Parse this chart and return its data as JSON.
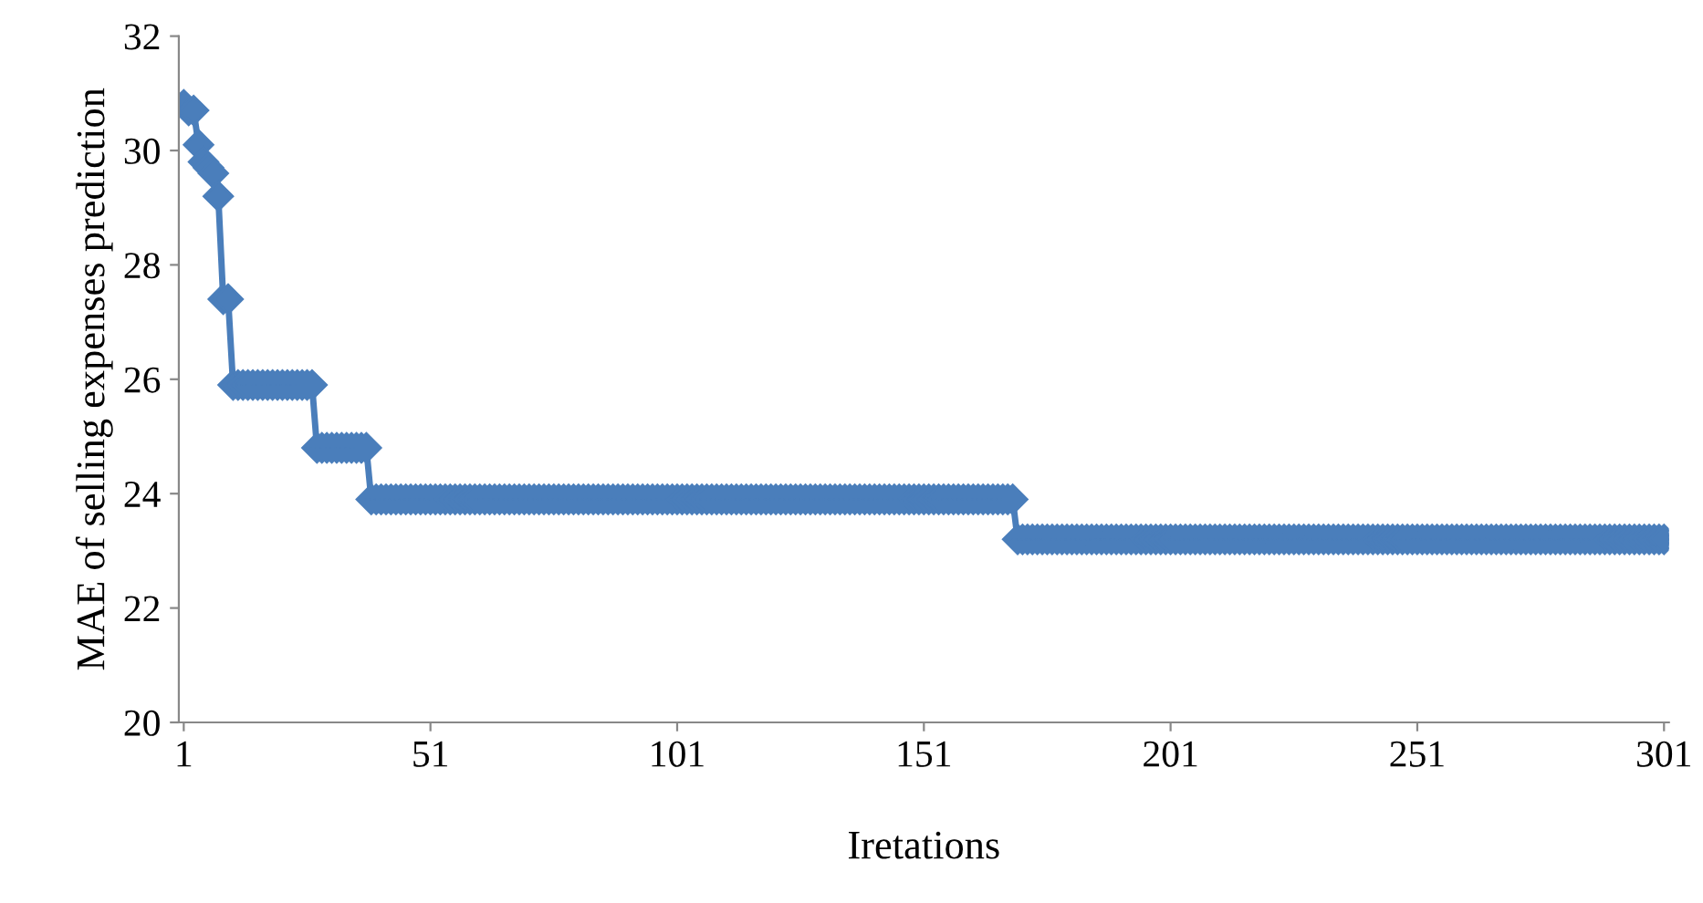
{
  "chart_data": {
    "type": "line",
    "xlabel": "Iretations",
    "ylabel": "MAE of selling expenses prediction",
    "x": [
      1,
      2,
      3,
      4,
      5,
      6,
      7,
      8,
      9,
      10,
      11,
      12,
      13,
      14,
      15,
      16,
      17,
      18,
      19,
      20,
      21,
      22,
      23,
      24,
      25,
      26,
      27,
      28,
      29,
      30,
      31,
      32,
      33,
      34,
      35,
      36,
      37,
      38,
      39,
      40,
      41,
      42,
      43,
      44,
      45,
      46,
      47,
      48,
      49,
      50,
      51,
      52,
      53,
      54,
      55,
      56,
      57,
      58,
      59,
      60,
      61,
      62,
      63,
      64,
      65,
      66,
      67,
      68,
      69,
      70,
      71,
      72,
      73,
      74,
      75,
      76,
      77,
      78,
      79,
      80,
      81,
      82,
      83,
      84,
      85,
      86,
      87,
      88,
      89,
      90,
      91,
      92,
      93,
      94,
      95,
      96,
      97,
      98,
      99,
      100,
      101,
      102,
      103,
      104,
      105,
      106,
      107,
      108,
      109,
      110,
      111,
      112,
      113,
      114,
      115,
      116,
      117,
      118,
      119,
      120,
      121,
      122,
      123,
      124,
      125,
      126,
      127,
      128,
      129,
      130,
      131,
      132,
      133,
      134,
      135,
      136,
      137,
      138,
      139,
      140,
      141,
      142,
      143,
      144,
      145,
      146,
      147,
      148,
      149,
      150,
      151,
      152,
      153,
      154,
      155,
      156,
      157,
      158,
      159,
      160,
      161,
      162,
      163,
      164,
      165,
      166,
      167,
      168,
      169,
      170,
      171,
      172,
      173,
      174,
      175,
      176,
      177,
      178,
      179,
      180,
      181,
      182,
      183,
      184,
      185,
      186,
      187,
      188,
      189,
      190,
      191,
      192,
      193,
      194,
      195,
      196,
      197,
      198,
      199,
      200,
      201,
      202,
      203,
      204,
      205,
      206,
      207,
      208,
      209,
      210,
      211,
      212,
      213,
      214,
      215,
      216,
      217,
      218,
      219,
      220,
      221,
      222,
      223,
      224,
      225,
      226,
      227,
      228,
      229,
      230,
      231,
      232,
      233,
      234,
      235,
      236,
      237,
      238,
      239,
      240,
      241,
      242,
      243,
      244,
      245,
      246,
      247,
      248,
      249,
      250,
      251,
      252,
      253,
      254,
      255,
      256,
      257,
      258,
      259,
      260,
      261,
      262,
      263,
      264,
      265,
      266,
      267,
      268,
      269,
      270,
      271,
      272,
      273,
      274,
      275,
      276,
      277,
      278,
      279,
      280,
      281,
      282,
      283,
      284,
      285,
      286,
      287,
      288,
      289,
      290,
      291,
      292,
      293,
      294,
      295,
      296,
      297,
      298,
      299,
      300,
      301
    ],
    "series": [
      {
        "color": "#4a7ebb",
        "values": [
          30.8,
          30.7,
          30.7,
          30.1,
          29.8,
          29.7,
          29.6,
          29.2,
          27.4,
          27.4,
          25.9,
          25.9,
          25.9,
          25.9,
          25.9,
          25.9,
          25.9,
          25.9,
          25.9,
          25.9,
          25.9,
          25.9,
          25.9,
          25.9,
          25.9,
          25.9,
          25.9,
          24.8,
          24.8,
          24.8,
          24.8,
          24.8,
          24.8,
          24.8,
          24.8,
          24.8,
          24.8,
          24.8,
          23.9,
          23.9,
          23.9,
          23.9,
          23.9,
          23.9,
          23.9,
          23.9,
          23.9,
          23.9,
          23.9,
          23.9,
          23.9,
          23.9,
          23.9,
          23.9,
          23.9,
          23.9,
          23.9,
          23.9,
          23.9,
          23.9,
          23.9,
          23.9,
          23.9,
          23.9,
          23.9,
          23.9,
          23.9,
          23.9,
          23.9,
          23.9,
          23.9,
          23.9,
          23.9,
          23.9,
          23.9,
          23.9,
          23.9,
          23.9,
          23.9,
          23.9,
          23.9,
          23.9,
          23.9,
          23.9,
          23.9,
          23.9,
          23.9,
          23.9,
          23.9,
          23.9,
          23.9,
          23.9,
          23.9,
          23.9,
          23.9,
          23.9,
          23.9,
          23.9,
          23.9,
          23.9,
          23.9,
          23.9,
          23.9,
          23.9,
          23.9,
          23.9,
          23.9,
          23.9,
          23.9,
          23.9,
          23.9,
          23.9,
          23.9,
          23.9,
          23.9,
          23.9,
          23.9,
          23.9,
          23.9,
          23.9,
          23.9,
          23.9,
          23.9,
          23.9,
          23.9,
          23.9,
          23.9,
          23.9,
          23.9,
          23.9,
          23.9,
          23.9,
          23.9,
          23.9,
          23.9,
          23.9,
          23.9,
          23.9,
          23.9,
          23.9,
          23.9,
          23.9,
          23.9,
          23.9,
          23.9,
          23.9,
          23.9,
          23.9,
          23.9,
          23.9,
          23.9,
          23.9,
          23.9,
          23.9,
          23.9,
          23.9,
          23.9,
          23.9,
          23.9,
          23.9,
          23.9,
          23.9,
          23.9,
          23.9,
          23.9,
          23.9,
          23.9,
          23.9,
          23.9,
          23.2,
          23.2,
          23.2,
          23.2,
          23.2,
          23.2,
          23.2,
          23.2,
          23.2,
          23.2,
          23.2,
          23.2,
          23.2,
          23.2,
          23.2,
          23.2,
          23.2,
          23.2,
          23.2,
          23.2,
          23.2,
          23.2,
          23.2,
          23.2,
          23.2,
          23.2,
          23.2,
          23.2,
          23.2,
          23.2,
          23.2,
          23.2,
          23.2,
          23.2,
          23.2,
          23.2,
          23.2,
          23.2,
          23.2,
          23.2,
          23.2,
          23.2,
          23.2,
          23.2,
          23.2,
          23.2,
          23.2,
          23.2,
          23.2,
          23.2,
          23.2,
          23.2,
          23.2,
          23.2,
          23.2,
          23.2,
          23.2,
          23.2,
          23.2,
          23.2,
          23.2,
          23.2,
          23.2,
          23.2,
          23.2,
          23.2,
          23.2,
          23.2,
          23.2,
          23.2,
          23.2,
          23.2,
          23.2,
          23.2,
          23.2,
          23.2,
          23.2,
          23.2,
          23.2,
          23.2,
          23.2,
          23.2,
          23.2,
          23.2,
          23.2,
          23.2,
          23.2,
          23.2,
          23.2,
          23.2,
          23.2,
          23.2,
          23.2,
          23.2,
          23.2,
          23.2,
          23.2,
          23.2,
          23.2,
          23.2,
          23.2,
          23.2,
          23.2,
          23.2,
          23.2,
          23.2,
          23.2,
          23.2,
          23.2,
          23.2,
          23.2,
          23.2,
          23.2,
          23.2,
          23.2,
          23.2,
          23.2,
          23.2,
          23.2,
          23.2,
          23.2,
          23.2,
          23.2,
          23.2,
          23.2,
          23.2,
          23.2,
          23.2,
          23.2,
          23.2,
          23.2,
          23.2
        ]
      }
    ],
    "xlim": [
      0,
      302
    ],
    "xticks": [
      1,
      51,
      101,
      151,
      201,
      251,
      301
    ],
    "ylim": [
      20,
      32
    ],
    "yticks": [
      20,
      22,
      24,
      26,
      28,
      30,
      32
    ],
    "marker": "diamond",
    "line_style": "solid",
    "grid": false,
    "legend": false
  }
}
